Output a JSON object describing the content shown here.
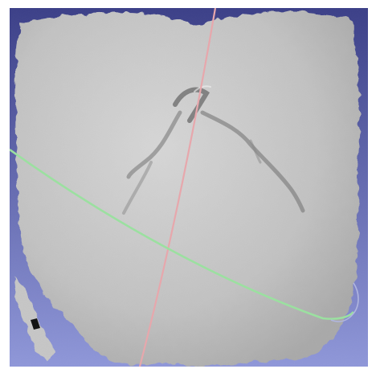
{
  "viewport": {
    "kind": "3d-mesh-viewer",
    "background_top": "#3b3f88",
    "background_bottom": "#8f97d9",
    "mesh_color": "#c9c9c9",
    "mesh_shadow": "#6c6c6c",
    "trackball_vertical_color": "#e7a7ac",
    "trackball_horizontal_color": "#9be0a0",
    "trackball_side_color": "#b0b6df"
  }
}
